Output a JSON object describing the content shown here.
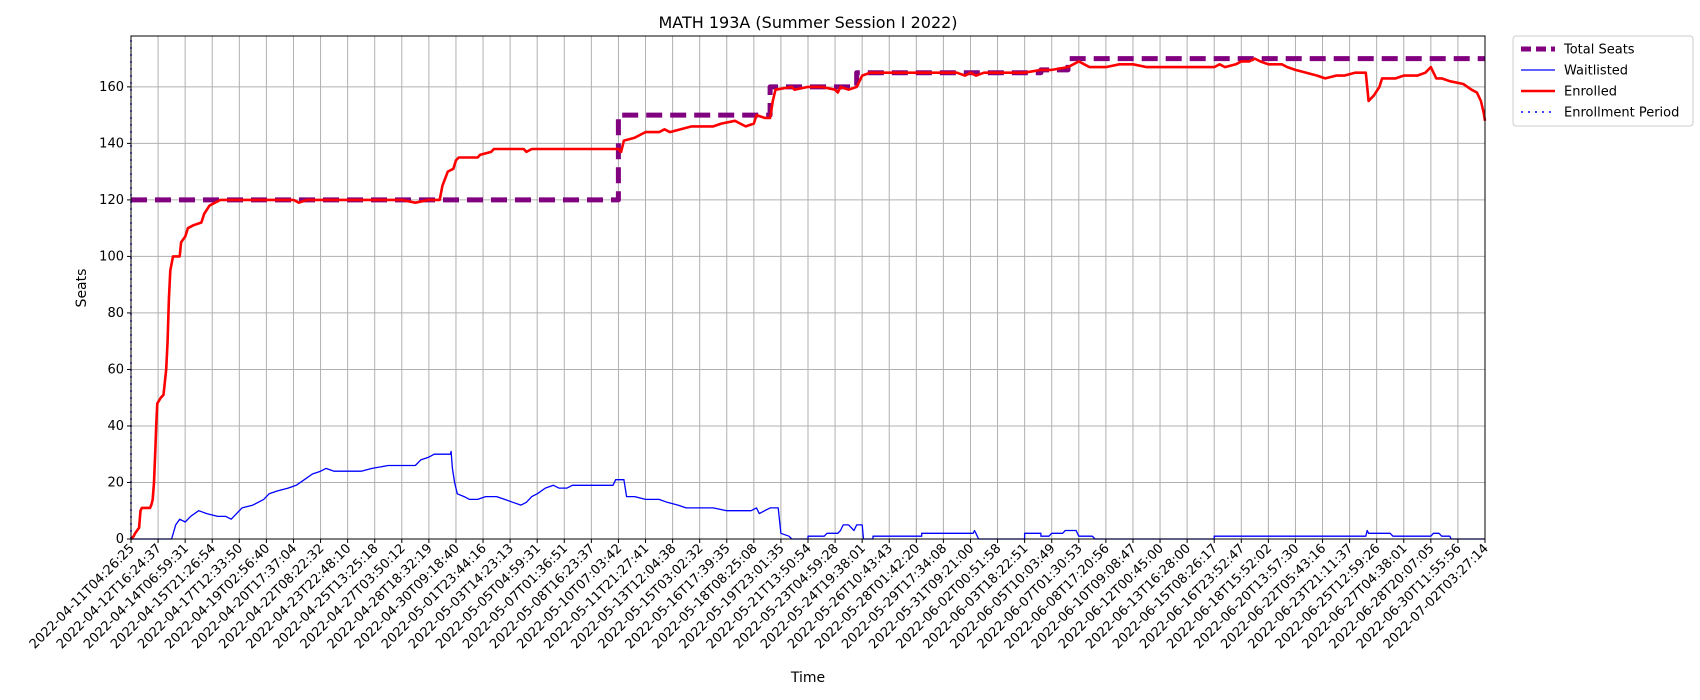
{
  "chart_data": {
    "type": "line",
    "title": "MATH 193A (Summer Session I 2022)",
    "xlabel": "Time",
    "ylabel": "Seats",
    "ylim": [
      0,
      178
    ],
    "y_ticks": [
      0,
      20,
      40,
      60,
      80,
      100,
      120,
      140,
      160
    ],
    "grid": true,
    "legend_placement": "outside top-right",
    "x_tick_labels": [
      "2022-04-11T04:26:25",
      "2022-04-12T16:24:37",
      "2022-04-14T06:59:31",
      "2022-04-15T21:26:54",
      "2022-04-17T12:33:50",
      "2022-04-19T02:56:40",
      "2022-04-20T17:37:04",
      "2022-04-22T08:22:32",
      "2022-04-23T22:48:10",
      "2022-04-25T13:25:18",
      "2022-04-27T03:50:12",
      "2022-04-28T18:32:19",
      "2022-04-30T09:18:40",
      "2022-05-01T23:44:16",
      "2022-05-03T14:23:13",
      "2022-05-05T04:59:31",
      "2022-05-07T01:36:51",
      "2022-05-08T16:23:37",
      "2022-05-10T07:03:42",
      "2022-05-11T21:27:41",
      "2022-05-13T12:04:38",
      "2022-05-15T03:02:32",
      "2022-05-16T17:39:35",
      "2022-05-18T08:25:08",
      "2022-05-19T23:01:35",
      "2022-05-21T13:50:54",
      "2022-05-23T04:59:28",
      "2022-05-24T19:38:01",
      "2022-05-26T10:43:43",
      "2022-05-28T01:42:20",
      "2022-05-29T17:34:08",
      "2022-05-31T09:21:00",
      "2022-06-02T00:51:58",
      "2022-06-03T18:22:51",
      "2022-06-05T10:03:49",
      "2022-06-07T01:30:53",
      "2022-06-08T17:20:56",
      "2022-06-10T09:08:47",
      "2022-06-12T00:45:00",
      "2022-06-13T16:28:00",
      "2022-06-15T08:26:17",
      "2022-06-16T23:52:47",
      "2022-06-18T15:52:02",
      "2022-06-20T13:57:30",
      "2022-06-22T05:43:16",
      "2022-06-23T21:11:37",
      "2022-06-25T12:59:26",
      "2022-06-27T04:38:01",
      "2022-06-28T20:07:05",
      "2022-06-30T11:55:56",
      "2022-07-02T03:27:14"
    ],
    "series": [
      {
        "name": "Total Seats",
        "color": "#800080",
        "style": "thick-dashed",
        "points": [
          [
            0,
            120
          ],
          [
            18,
            120
          ],
          [
            18,
            150
          ],
          [
            23.6,
            150
          ],
          [
            23.6,
            160
          ],
          [
            26.8,
            160
          ],
          [
            26.8,
            165
          ],
          [
            33.6,
            165
          ],
          [
            33.6,
            166
          ],
          [
            34.6,
            166
          ],
          [
            34.6,
            170
          ],
          [
            50,
            170
          ]
        ]
      },
      {
        "name": "Waitlisted",
        "color": "#0000ff",
        "style": "thin-solid",
        "points": [
          [
            0,
            0
          ],
          [
            1.5,
            0
          ],
          [
            1.65,
            5
          ],
          [
            1.8,
            7
          ],
          [
            2,
            6
          ],
          [
            2.2,
            8
          ],
          [
            2.5,
            10
          ],
          [
            2.8,
            9
          ],
          [
            3.2,
            8
          ],
          [
            3.5,
            8
          ],
          [
            3.7,
            7
          ],
          [
            3.9,
            9
          ],
          [
            4.1,
            11
          ],
          [
            4.5,
            12
          ],
          [
            4.9,
            14
          ],
          [
            5.1,
            16
          ],
          [
            5.4,
            17
          ],
          [
            5.8,
            18
          ],
          [
            6.1,
            19
          ],
          [
            6.4,
            21
          ],
          [
            6.7,
            23
          ],
          [
            7,
            24
          ],
          [
            7.2,
            25
          ],
          [
            7.5,
            24
          ],
          [
            8,
            24
          ],
          [
            8.5,
            24
          ],
          [
            8.9,
            25
          ],
          [
            9.5,
            26
          ],
          [
            10,
            26
          ],
          [
            10.5,
            26
          ],
          [
            10.7,
            28
          ],
          [
            11,
            29
          ],
          [
            11.2,
            30
          ],
          [
            11.5,
            30
          ],
          [
            11.8,
            30
          ],
          [
            11.82,
            31
          ],
          [
            11.87,
            25
          ],
          [
            11.95,
            20
          ],
          [
            12.05,
            16
          ],
          [
            12.3,
            15
          ],
          [
            12.5,
            14
          ],
          [
            12.8,
            14
          ],
          [
            13.1,
            15
          ],
          [
            13.5,
            15
          ],
          [
            13.8,
            14
          ],
          [
            14.1,
            13
          ],
          [
            14.4,
            12
          ],
          [
            14.6,
            13
          ],
          [
            14.8,
            15
          ],
          [
            15,
            16
          ],
          [
            15.3,
            18
          ],
          [
            15.6,
            19
          ],
          [
            15.8,
            18
          ],
          [
            16.1,
            18
          ],
          [
            16.3,
            19
          ],
          [
            17,
            19
          ],
          [
            17.5,
            19
          ],
          [
            17.8,
            19
          ],
          [
            17.9,
            21
          ],
          [
            18.2,
            21
          ],
          [
            18.3,
            15
          ],
          [
            18.6,
            15
          ],
          [
            19,
            14
          ],
          [
            19.5,
            14
          ],
          [
            19.8,
            13
          ],
          [
            20.2,
            12
          ],
          [
            20.5,
            11
          ],
          [
            21,
            11
          ],
          [
            21.5,
            11
          ],
          [
            22,
            10
          ],
          [
            22.5,
            10
          ],
          [
            22.9,
            10
          ],
          [
            23.1,
            11
          ],
          [
            23.2,
            9
          ],
          [
            23.4,
            10
          ],
          [
            23.6,
            11
          ],
          [
            23.9,
            11
          ],
          [
            24,
            2
          ],
          [
            24.3,
            1
          ],
          [
            24.4,
            0
          ],
          [
            25,
            0
          ],
          [
            25,
            1
          ],
          [
            25.6,
            1
          ],
          [
            25.7,
            2
          ],
          [
            26.1,
            2
          ],
          [
            26.2,
            3
          ],
          [
            26.3,
            5
          ],
          [
            26.5,
            5
          ],
          [
            26.7,
            3
          ],
          [
            26.8,
            5
          ],
          [
            27,
            5
          ],
          [
            27.05,
            0
          ],
          [
            27.4,
            0
          ],
          [
            27.4,
            1
          ],
          [
            29.2,
            1
          ],
          [
            29.2,
            2
          ],
          [
            31.1,
            2
          ],
          [
            31.15,
            3
          ],
          [
            31.2,
            2
          ],
          [
            31.3,
            0
          ],
          [
            33,
            0
          ],
          [
            33,
            2
          ],
          [
            33.6,
            2
          ],
          [
            33.6,
            1
          ],
          [
            33.9,
            1
          ],
          [
            34,
            2
          ],
          [
            34.4,
            2
          ],
          [
            34.5,
            3
          ],
          [
            34.9,
            3
          ],
          [
            35,
            1
          ],
          [
            35.5,
            1
          ],
          [
            35.6,
            0
          ],
          [
            40,
            0
          ],
          [
            40,
            1
          ],
          [
            45.6,
            1
          ],
          [
            45.65,
            3
          ],
          [
            45.7,
            2
          ],
          [
            46.5,
            2
          ],
          [
            46.6,
            1
          ],
          [
            48,
            1
          ],
          [
            48.1,
            2
          ],
          [
            48.3,
            2
          ],
          [
            48.4,
            1
          ],
          [
            48.7,
            1
          ],
          [
            48.75,
            0
          ],
          [
            50,
            0
          ]
        ]
      },
      {
        "name": "Enrolled",
        "color": "#ff0000",
        "style": "thick-solid",
        "points": [
          [
            0,
            0
          ],
          [
            0.1,
            1
          ],
          [
            0.15,
            2
          ],
          [
            0.3,
            4
          ],
          [
            0.35,
            10
          ],
          [
            0.4,
            11
          ],
          [
            0.7,
            11
          ],
          [
            0.75,
            12
          ],
          [
            0.8,
            14
          ],
          [
            0.85,
            20
          ],
          [
            0.9,
            32
          ],
          [
            0.93,
            40
          ],
          [
            0.97,
            48
          ],
          [
            1.1,
            50
          ],
          [
            1.2,
            51
          ],
          [
            1.3,
            60
          ],
          [
            1.35,
            70
          ],
          [
            1.4,
            85
          ],
          [
            1.45,
            95
          ],
          [
            1.55,
            100
          ],
          [
            1.8,
            100
          ],
          [
            1.85,
            105
          ],
          [
            2,
            107
          ],
          [
            2.1,
            110
          ],
          [
            2.3,
            111
          ],
          [
            2.6,
            112
          ],
          [
            2.7,
            115
          ],
          [
            2.9,
            118
          ],
          [
            3.1,
            119
          ],
          [
            3.3,
            120
          ],
          [
            3.5,
            120
          ],
          [
            4,
            120
          ],
          [
            5,
            120
          ],
          [
            6,
            120
          ],
          [
            6.2,
            119
          ],
          [
            6.5,
            120
          ],
          [
            7,
            120
          ],
          [
            8,
            120
          ],
          [
            9,
            120
          ],
          [
            10,
            120
          ],
          [
            10.5,
            119
          ],
          [
            11,
            120
          ],
          [
            11.4,
            120
          ],
          [
            11.5,
            125
          ],
          [
            11.7,
            130
          ],
          [
            11.9,
            131
          ],
          [
            12,
            134
          ],
          [
            12.1,
            135
          ],
          [
            12.8,
            135
          ],
          [
            12.9,
            136
          ],
          [
            13.3,
            137
          ],
          [
            13.4,
            138
          ],
          [
            14.5,
            138
          ],
          [
            14.6,
            137
          ],
          [
            14.8,
            138
          ],
          [
            16,
            138
          ],
          [
            17,
            138
          ],
          [
            18,
            138
          ],
          [
            18.1,
            137
          ],
          [
            18.2,
            141
          ],
          [
            18.6,
            142
          ],
          [
            18.8,
            143
          ],
          [
            19,
            144
          ],
          [
            19.5,
            144
          ],
          [
            19.7,
            145
          ],
          [
            19.9,
            144
          ],
          [
            20.3,
            145
          ],
          [
            20.7,
            146
          ],
          [
            21.5,
            146
          ],
          [
            21.8,
            147
          ],
          [
            22.3,
            148
          ],
          [
            22.5,
            147
          ],
          [
            22.7,
            146
          ],
          [
            23,
            147
          ],
          [
            23.1,
            150
          ],
          [
            23.4,
            149
          ],
          [
            23.6,
            149
          ],
          [
            23.7,
            155
          ],
          [
            23.8,
            159
          ],
          [
            24.4,
            160
          ],
          [
            24.5,
            159
          ],
          [
            25,
            160
          ],
          [
            25.5,
            160
          ],
          [
            26,
            159
          ],
          [
            26.1,
            158
          ],
          [
            26.2,
            160
          ],
          [
            26.5,
            159
          ],
          [
            26.8,
            160
          ],
          [
            27,
            164
          ],
          [
            27.3,
            165
          ],
          [
            28,
            165
          ],
          [
            29,
            165
          ],
          [
            29.5,
            165
          ],
          [
            30,
            165
          ],
          [
            30.5,
            165
          ],
          [
            30.8,
            164
          ],
          [
            31,
            165
          ],
          [
            31.2,
            164
          ],
          [
            31.5,
            165
          ],
          [
            32,
            165
          ],
          [
            33,
            165
          ],
          [
            33.6,
            166
          ],
          [
            34,
            166
          ],
          [
            34.6,
            167
          ],
          [
            34.8,
            168
          ],
          [
            35,
            169
          ],
          [
            35.2,
            168
          ],
          [
            35.4,
            167
          ],
          [
            36,
            167
          ],
          [
            36.5,
            168
          ],
          [
            37,
            168
          ],
          [
            37.5,
            167
          ],
          [
            38,
            167
          ],
          [
            39,
            167
          ],
          [
            40,
            167
          ],
          [
            40.2,
            168
          ],
          [
            40.4,
            167
          ],
          [
            40.8,
            168
          ],
          [
            41,
            169
          ],
          [
            41.3,
            169
          ],
          [
            41.5,
            170
          ],
          [
            41.7,
            169
          ],
          [
            42,
            168
          ],
          [
            42.5,
            168
          ],
          [
            42.7,
            167
          ],
          [
            43,
            166
          ],
          [
            43.4,
            165
          ],
          [
            43.8,
            164
          ],
          [
            44.1,
            163
          ],
          [
            44.5,
            164
          ],
          [
            44.8,
            164
          ],
          [
            45.2,
            165
          ],
          [
            45.6,
            165
          ],
          [
            45.7,
            155
          ],
          [
            45.9,
            157
          ],
          [
            46.1,
            160
          ],
          [
            46.2,
            163
          ],
          [
            46.7,
            163
          ],
          [
            47,
            164
          ],
          [
            47.5,
            164
          ],
          [
            47.8,
            165
          ],
          [
            48,
            167
          ],
          [
            48.2,
            163
          ],
          [
            48.4,
            163
          ],
          [
            48.7,
            162
          ],
          [
            49.2,
            161
          ],
          [
            49.5,
            159
          ],
          [
            49.7,
            158
          ],
          [
            49.85,
            155
          ],
          [
            49.95,
            151
          ],
          [
            50,
            148
          ]
        ]
      },
      {
        "name": "Enrollment Period",
        "color": "#0000ff",
        "style": "dotted",
        "points": [
          [
            0,
            0
          ],
          [
            0,
            178
          ]
        ]
      }
    ]
  }
}
